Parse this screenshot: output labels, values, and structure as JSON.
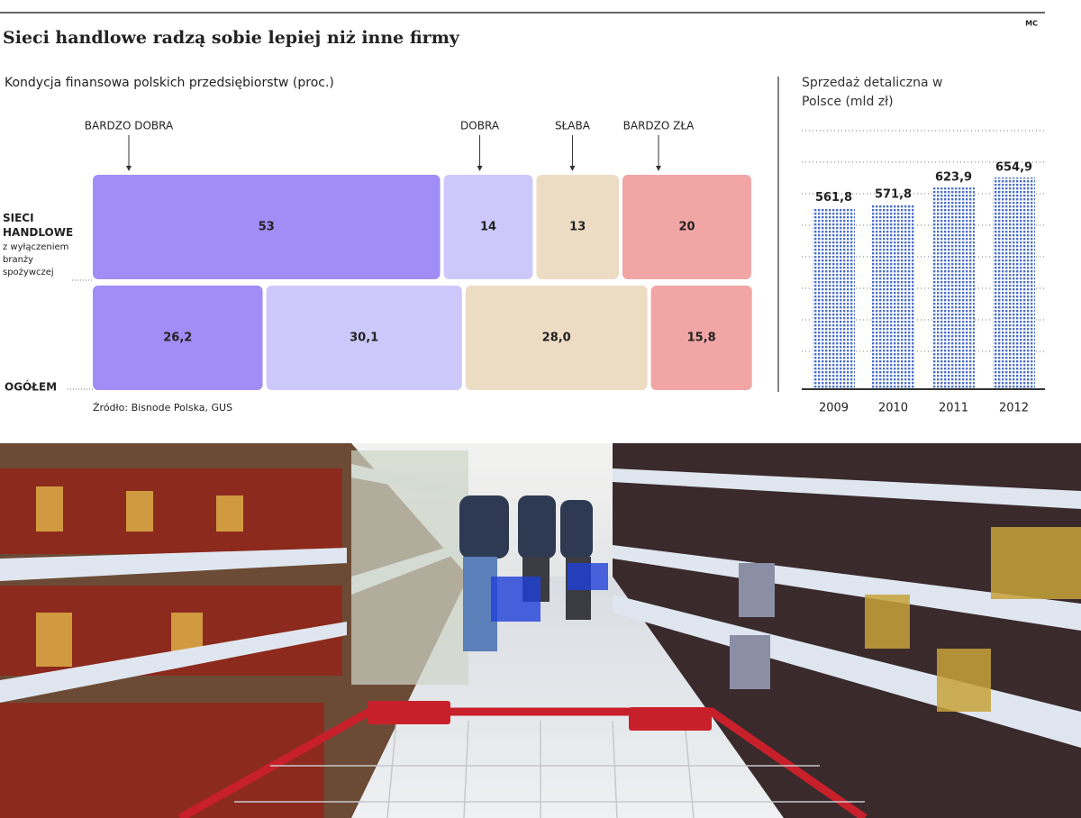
{
  "title": "Sieci handlowe radzą sobie lepiej niż inne firmy",
  "credit": "MC",
  "chart_data": [
    {
      "type": "stacked_barh",
      "title": "Kondycja finansowa polskich przedsiębiorstw (proc.)",
      "categories": [
        "SIECI HANDLOWE",
        "OGÓŁEM"
      ],
      "category_notes": [
        "z wyłączeniem branży spożywczej",
        null
      ],
      "xlim": [
        0,
        100
      ],
      "series": [
        {
          "name": "BARDZO DOBRA",
          "color": "#a08df5",
          "values": [
            53,
            26.2
          ],
          "value_labels": [
            "53",
            "26,2"
          ]
        },
        {
          "name": "DOBRA",
          "color": "#cdc8fb",
          "values": [
            14,
            30.1
          ],
          "value_labels": [
            "14",
            "30,1"
          ]
        },
        {
          "name": "SŁABA",
          "color": "#eddcc4",
          "values": [
            13,
            28.0
          ],
          "value_labels": [
            "13",
            "28,0"
          ]
        },
        {
          "name": "BARDZO ZŁA",
          "color": "#f2a5a5",
          "values": [
            20,
            15.8
          ],
          "value_labels": [
            "20",
            "15,8"
          ]
        }
      ],
      "source": "Źródło: Bisnode Polska, GUS"
    },
    {
      "type": "bar",
      "title": "Sprzedaż detaliczna w Polsce (mld zł)",
      "categories": [
        "2009",
        "2010",
        "2011",
        "2012"
      ],
      "values": [
        561.8,
        571.8,
        623.9,
        654.9
      ],
      "value_labels": [
        "561,8",
        "571,8",
        "623,9",
        "654,9"
      ],
      "color": "#4a6fc8",
      "ylim": [
        0,
        800
      ],
      "grid": true
    }
  ]
}
